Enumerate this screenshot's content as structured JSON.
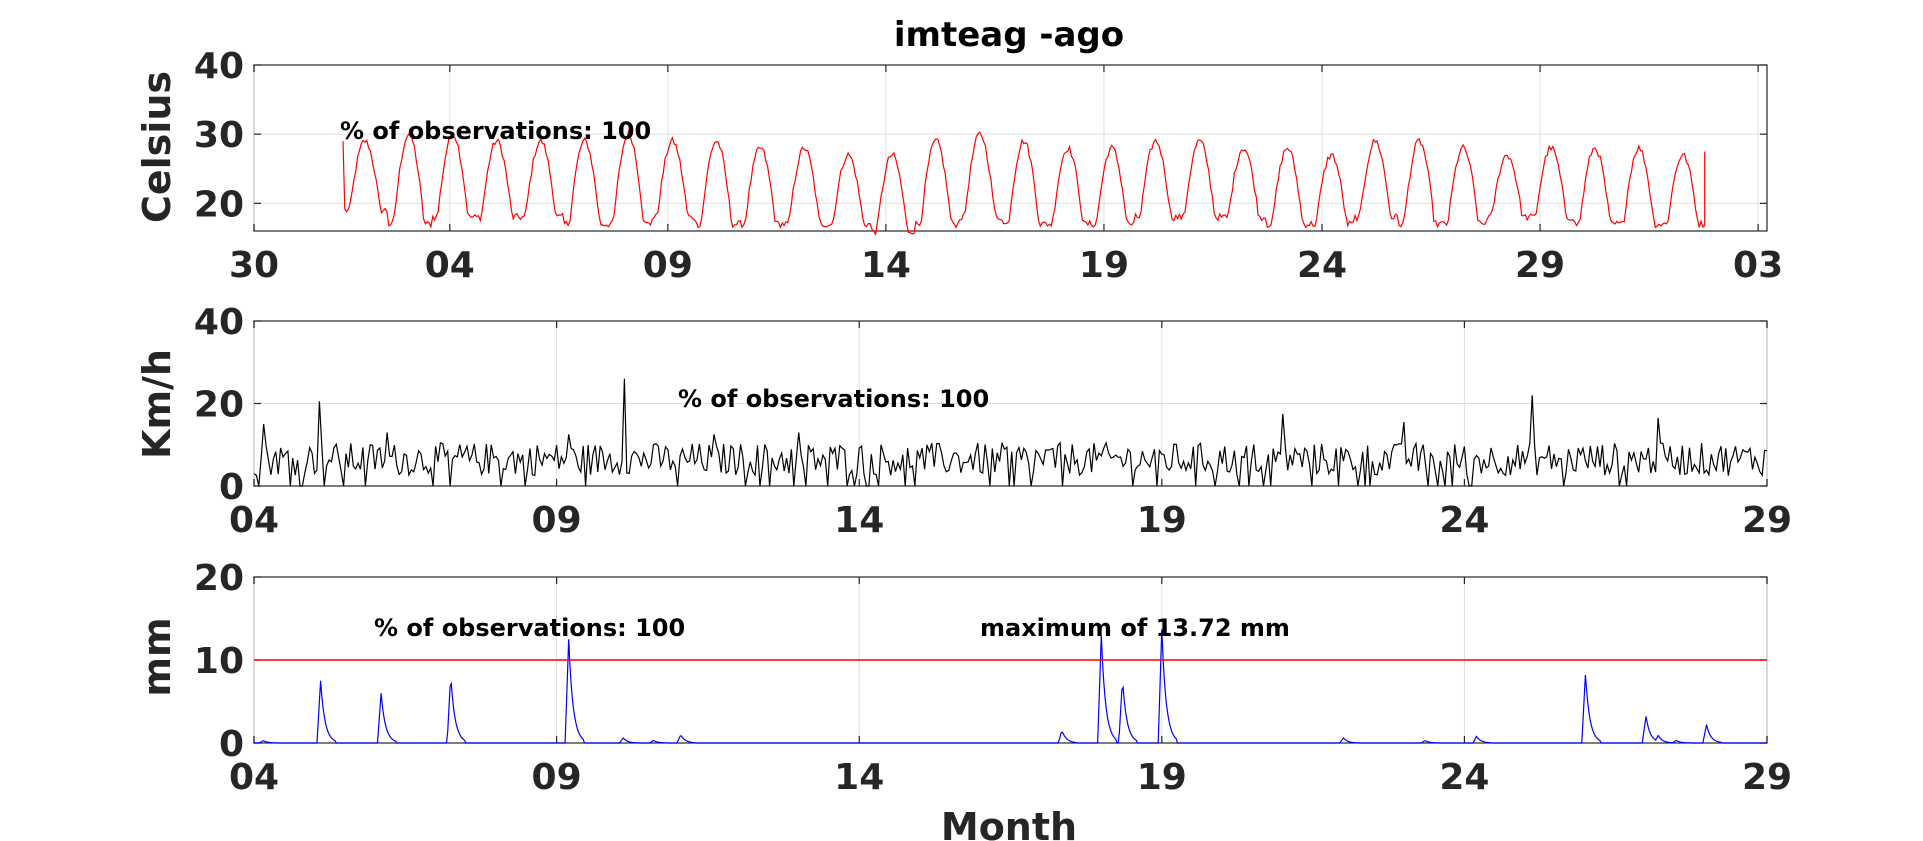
{
  "figure": {
    "title": "imteag -ago",
    "xlabel": "Month"
  },
  "chart_data": [
    {
      "type": "line",
      "name": "temperature",
      "ylabel": "Celsius",
      "ylim": [
        16,
        40
      ],
      "yticks": [
        20,
        30,
        40
      ],
      "xlim": [
        30,
        64
      ],
      "xtick_positions": [
        30,
        34.4,
        39.3,
        44.2,
        49.1,
        54,
        58.9,
        63.8
      ],
      "xtick_labels": [
        "30",
        "04",
        "09",
        "14",
        "19",
        "24",
        "29",
        "03"
      ],
      "grid": true,
      "annotation": "% of observations: 100",
      "color": "#ff0000",
      "series": [
        {
          "x_start": 32.0,
          "x_end": 62.6,
          "daily_max": [
            29,
            30,
            30,
            29,
            29,
            29,
            30,
            29,
            29,
            28,
            28,
            27,
            27,
            29,
            30,
            29,
            28,
            28,
            29,
            29,
            28,
            28,
            27,
            29,
            29,
            28,
            27,
            28,
            28,
            28,
            27
          ],
          "daily_min": [
            19,
            17,
            18,
            18,
            18,
            17,
            17,
            18,
            17,
            17,
            17,
            17,
            16,
            17,
            18,
            17,
            17,
            17,
            18,
            18,
            18,
            17,
            17,
            18,
            17,
            17,
            18,
            18,
            17,
            17,
            17
          ],
          "start_value": 29,
          "end_value": 27.5
        }
      ]
    },
    {
      "type": "line",
      "name": "wind",
      "ylabel": "Km/h",
      "ylim": [
        0,
        40
      ],
      "yticks": [
        0,
        20,
        40
      ],
      "xlim": [
        4,
        29
      ],
      "xticks": [
        4,
        9,
        14,
        19,
        24,
        29
      ],
      "xtick_labels": [
        "04",
        "09",
        "14",
        "19",
        "24",
        "29"
      ],
      "grid": true,
      "annotation": "% of observations: 100",
      "color": "#000000",
      "series": [
        {
          "baseline_mean": 6.5,
          "spikes": [
            [
              4.15,
              15
            ],
            [
              5.1,
              20.5
            ],
            [
              6.2,
              13
            ],
            [
              9.2,
              12.5
            ],
            [
              10.1,
              26
            ],
            [
              11.6,
              12.5
            ],
            [
              13.0,
              13
            ],
            [
              21.0,
              17.5
            ],
            [
              23.0,
              15.5
            ],
            [
              25.1,
              22
            ],
            [
              27.2,
              16.5
            ]
          ]
        }
      ]
    },
    {
      "type": "line",
      "name": "precipitation",
      "ylabel": "mm",
      "ylim": [
        0,
        20
      ],
      "yticks": [
        0,
        10,
        20
      ],
      "xlim": [
        4,
        29
      ],
      "xticks": [
        4,
        9,
        14,
        19,
        24,
        29
      ],
      "xtick_labels": [
        "04",
        "09",
        "14",
        "19",
        "24",
        "29"
      ],
      "grid": true,
      "annotation": "% of observations: 100",
      "max_annotation": "maximum of 13.72 mm",
      "threshold": 10,
      "threshold_color": "#ff0000",
      "color": "#0000ff",
      "series": [
        {
          "peaks": [
            [
              4.15,
              0.3
            ],
            [
              5.1,
              7.5
            ],
            [
              6.1,
              6
            ],
            [
              7.25,
              8.2
            ],
            [
              9.2,
              12.5
            ],
            [
              10.1,
              0.6
            ],
            [
              10.6,
              0.3
            ],
            [
              11.05,
              1
            ],
            [
              17.35,
              1.5
            ],
            [
              18.0,
              13
            ],
            [
              18.35,
              7.7
            ],
            [
              19.0,
              13.7
            ],
            [
              22.0,
              0.6
            ],
            [
              23.35,
              0.3
            ],
            [
              24.2,
              0.8
            ],
            [
              26.0,
              8.2
            ],
            [
              27.0,
              3.2
            ],
            [
              27.2,
              0.9
            ],
            [
              27.5,
              0.3
            ],
            [
              28.0,
              2.2
            ]
          ]
        }
      ]
    }
  ]
}
